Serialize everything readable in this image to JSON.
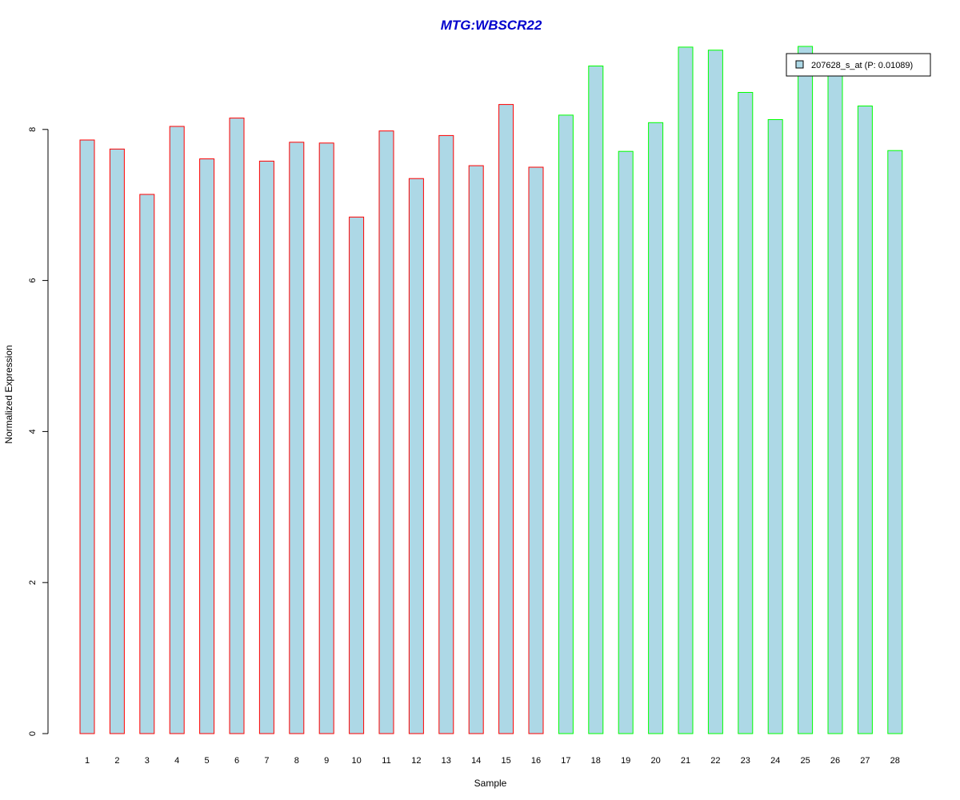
{
  "chart_data": {
    "type": "bar",
    "title": "MTG:WBSCR22",
    "xlabel": "Sample",
    "ylabel": "Normalized Expression",
    "categories": [
      "1",
      "2",
      "3",
      "4",
      "5",
      "6",
      "7",
      "8",
      "9",
      "10",
      "11",
      "12",
      "13",
      "14",
      "15",
      "16",
      "17",
      "18",
      "19",
      "20",
      "21",
      "22",
      "23",
      "24",
      "25",
      "26",
      "27",
      "28"
    ],
    "series": [
      {
        "name": "207628_s_at (P: 0.01089)",
        "values": [
          7.86,
          7.74,
          7.14,
          8.04,
          7.61,
          8.15,
          7.58,
          7.83,
          7.82,
          6.84,
          7.98,
          7.35,
          7.92,
          7.52,
          8.33,
          7.5,
          8.19,
          8.84,
          7.71,
          8.09,
          9.09,
          9.05,
          8.49,
          8.13,
          9.1,
          8.84,
          8.31,
          7.72
        ]
      }
    ],
    "groups": [
      {
        "samples": "1-16",
        "border_color": "#ff0000"
      },
      {
        "samples": "17-28",
        "border_color": "#00ff00"
      }
    ],
    "yticks": [
      0,
      2,
      4,
      6,
      8
    ],
    "ylim": [
      0,
      9.1
    ],
    "grid": false,
    "legend_position": "top-right",
    "colors": {
      "bar_fill": "#add8e6",
      "group1_border": "#ff0000",
      "group2_border": "#00ff00",
      "title": "#0000cd"
    }
  }
}
